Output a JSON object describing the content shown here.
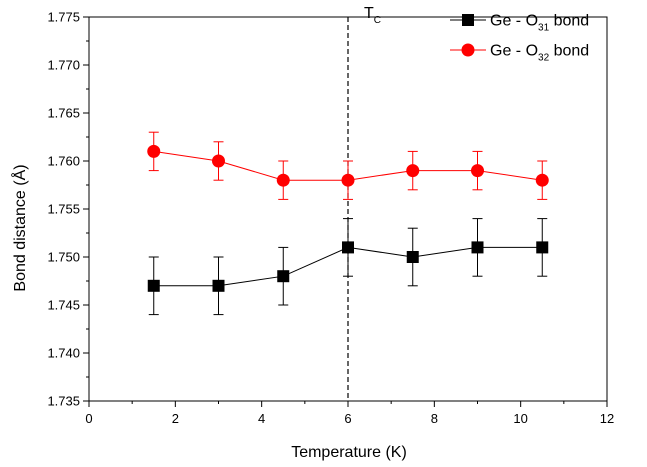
{
  "chart_data": {
    "type": "line",
    "xlabel": "Temperature (K)",
    "ylabel": "Bond distance (Å)",
    "xlim": [
      0,
      12
    ],
    "ylim": [
      1.735,
      1.775
    ],
    "xticks": [
      0,
      2,
      4,
      6,
      8,
      10,
      12
    ],
    "yticks": [
      1.735,
      1.74,
      1.745,
      1.75,
      1.755,
      1.76,
      1.765,
      1.77,
      1.775
    ],
    "ytick_labels": [
      "1.735",
      "1.740",
      "1.745",
      "1.750",
      "1.755",
      "1.760",
      "1.765",
      "1.770",
      "1.775"
    ],
    "grid": false,
    "legend_position": "top-right",
    "vline": {
      "x": 6,
      "label_main": "T",
      "label_sub": "C",
      "style": "dashed"
    },
    "series": [
      {
        "name_main": "Ge - O",
        "name_sub": "31",
        "name_suffix": " bond",
        "marker": "square",
        "color": "#000000",
        "x": [
          1.5,
          3,
          4.5,
          6,
          7.5,
          9,
          10.5
        ],
        "y": [
          1.747,
          1.747,
          1.748,
          1.751,
          1.75,
          1.751,
          1.751
        ],
        "yerr": [
          0.003,
          0.003,
          0.003,
          0.003,
          0.003,
          0.003,
          0.003
        ]
      },
      {
        "name_main": "Ge - O",
        "name_sub": "32",
        "name_suffix": " bond",
        "marker": "circle",
        "color": "#ff0000",
        "x": [
          1.5,
          3,
          4.5,
          6,
          7.5,
          9,
          10.5
        ],
        "y": [
          1.761,
          1.76,
          1.758,
          1.758,
          1.759,
          1.759,
          1.758
        ],
        "yerr": [
          0.002,
          0.002,
          0.002,
          0.002,
          0.002,
          0.002,
          0.002
        ]
      }
    ]
  }
}
